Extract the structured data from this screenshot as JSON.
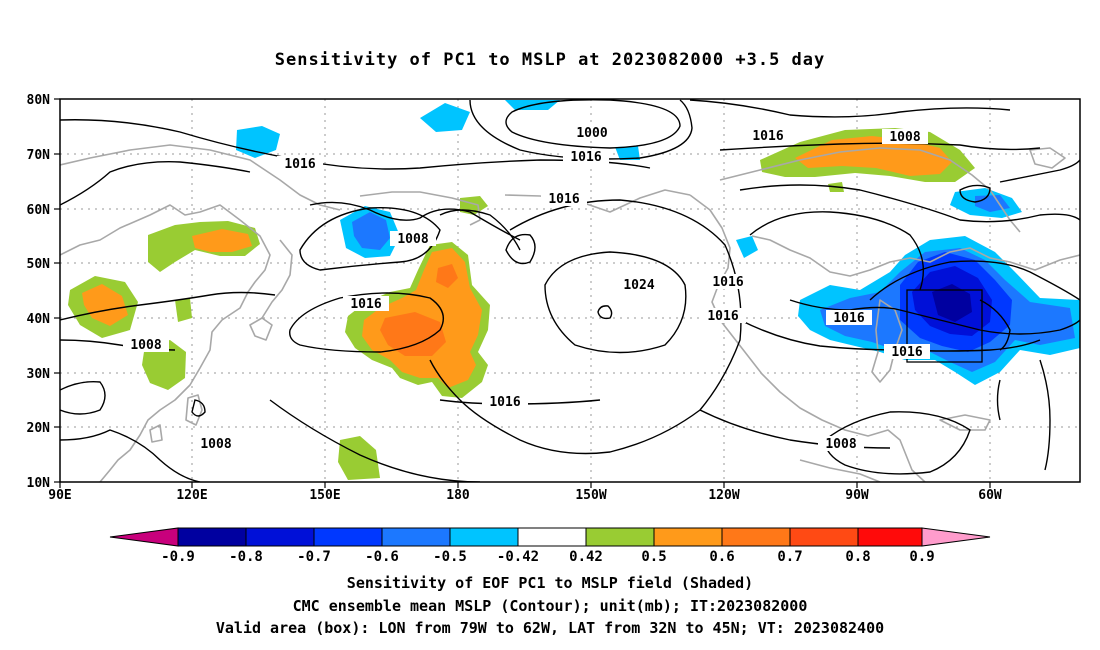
{
  "title": "Sensitivity of PC1 to MSLP at 2023082000 +3.5 day",
  "map": {
    "lat_labels": [
      "80N",
      "70N",
      "60N",
      "50N",
      "40N",
      "30N",
      "20N",
      "10N"
    ],
    "lon_labels": [
      "90E",
      "120E",
      "150E",
      "180",
      "150W",
      "120W",
      "90W",
      "60W"
    ],
    "contours": [
      {
        "label": "1000",
        "value": 1000
      },
      {
        "label": "1016",
        "value": 1016
      },
      {
        "label": "1008",
        "value": 1008
      },
      {
        "label": "1024",
        "value": 1024
      }
    ],
    "contour_labels": [
      "1000",
      "1016",
      "1016",
      "1016",
      "1008",
      "1008",
      "1016",
      "1016",
      "1016",
      "1024",
      "1016",
      "1016",
      "1008",
      "1016",
      "1016",
      "1008",
      "1008"
    ],
    "valid_box": {
      "lon_min": "79W",
      "lon_max": "62W",
      "lat_min": "32N",
      "lat_max": "45N"
    }
  },
  "colorbar": {
    "ticks": [
      "-0.9",
      "-0.8",
      "-0.7",
      "-0.6",
      "-0.5",
      "-0.42",
      "0.42",
      "0.5",
      "0.6",
      "0.7",
      "0.8",
      "0.9"
    ],
    "colors": {
      "below_min": "#c8007c",
      "neg_0_9_0_8": "#0000a0",
      "neg_0_8_0_7": "#0010d8",
      "neg_0_7_0_6": "#0038ff",
      "neg_0_6_0_5": "#1c78ff",
      "neg_0_5_0_42": "#00c4ff",
      "neutral": "#ffffff",
      "pos_0_42_0_5": "#99cc33",
      "pos_0_5_0_6": "#ff9a1a",
      "pos_0_6_0_7": "#ff7818",
      "pos_0_7_0_8": "#ff4a14",
      "pos_0_8_0_9": "#ff0a0a",
      "above_max": "#ff9ccc"
    }
  },
  "footer": {
    "line1": "Sensitivity of EOF PC1 to MSLP field (Shaded)",
    "line2": "CMC ensemble mean MSLP (Contour); unit(mb); IT:2023082000",
    "line3": "Valid area (box): LON from 79W to 62W, LAT from 32N to 45N; VT: 2023082400"
  }
}
